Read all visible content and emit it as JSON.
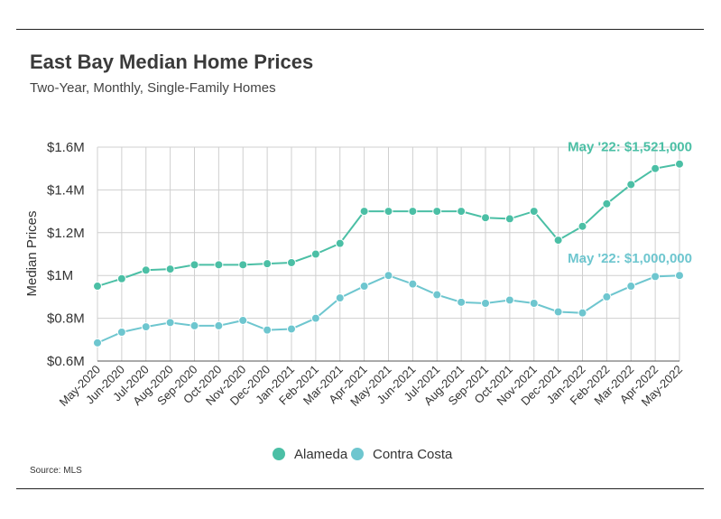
{
  "header": {
    "title": "East Bay Median Home Prices",
    "subtitle": "Two-Year, Monthly, Single-Family Homes"
  },
  "footer": {
    "source": "Source: MLS"
  },
  "colors": {
    "alameda": "#4bbfa5",
    "contra_costa": "#6ec6cf",
    "grid": "#cfcfcf",
    "axis": "#555555"
  },
  "chart_data": {
    "type": "line",
    "title": "East Bay Median Home Prices",
    "subtitle": "Two-Year, Monthly, Single-Family Homes",
    "xlabel": "",
    "ylabel": "Median Prices",
    "ylim": [
      600000,
      1600000
    ],
    "yticks": [
      600000,
      800000,
      1000000,
      1200000,
      1400000,
      1600000
    ],
    "ytick_labels": [
      "$0.6M",
      "$0.8M",
      "$1M",
      "$1.2M",
      "$1.4M",
      "$1.6M"
    ],
    "grid": true,
    "legend": "bottom-center",
    "categories": [
      "May-2020",
      "Jun-2020",
      "Jul-2020",
      "Aug-2020",
      "Sep-2020",
      "Oct-2020",
      "Nov-2020",
      "Dec-2020",
      "Jan-2021",
      "Feb-2021",
      "Mar-2021",
      "Apr-2021",
      "May-2021",
      "Jun-2021",
      "Jul-2021",
      "Aug-2021",
      "Sep-2021",
      "Oct-2021",
      "Nov-2021",
      "Dec-2021",
      "Jan-2022",
      "Feb-2022",
      "Mar-2022",
      "Apr-2022",
      "May-2022"
    ],
    "series": [
      {
        "name": "Alameda",
        "values": [
          950000,
          985000,
          1025000,
          1030000,
          1050000,
          1050000,
          1050000,
          1055000,
          1060000,
          1100000,
          1150000,
          1300000,
          1300000,
          1300000,
          1300000,
          1300000,
          1270000,
          1265000,
          1300000,
          1165000,
          1230000,
          1335000,
          1425000,
          1500000,
          1521000
        ]
      },
      {
        "name": "Contra Costa",
        "values": [
          685000,
          735000,
          760000,
          780000,
          765000,
          765000,
          790000,
          745000,
          750000,
          800000,
          895000,
          950000,
          1000000,
          960000,
          910000,
          875000,
          870000,
          885000,
          870000,
          830000,
          825000,
          900000,
          950000,
          995000,
          1000000
        ]
      }
    ],
    "annotations": [
      {
        "series": 0,
        "text": "May '22: $1,521,000"
      },
      {
        "series": 1,
        "text": "May '22: $1,000,000"
      }
    ]
  }
}
